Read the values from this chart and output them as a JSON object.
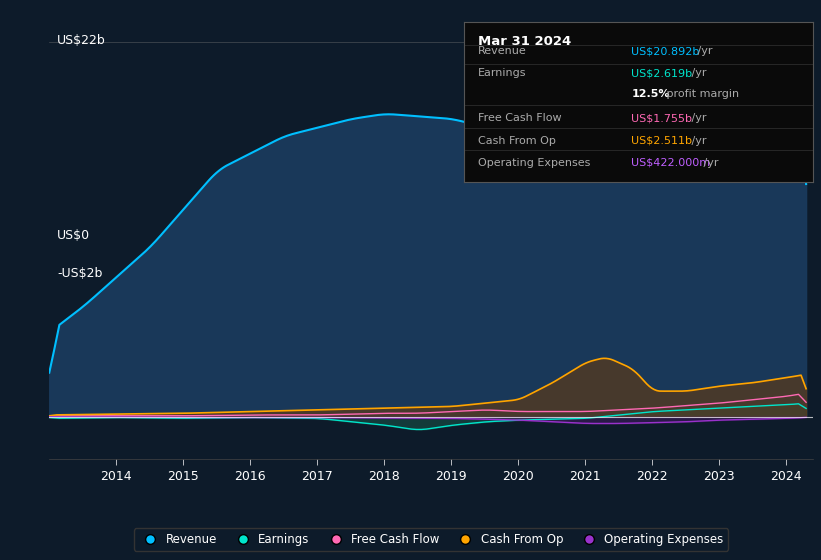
{
  "bg_color": "#0d1b2a",
  "plot_bg_color": "#0d1b2a",
  "title": "Mar 31 2024",
  "ylabel_top": "US$22b",
  "ylabel_zero": "US$0",
  "ylabel_neg": "-US$2b",
  "x_ticks": [
    "2014",
    "2015",
    "2016",
    "2017",
    "2018",
    "2019",
    "2020",
    "2021",
    "2022",
    "2023",
    "2024"
  ],
  "colors": {
    "revenue": "#00bfff",
    "earnings": "#00e5cc",
    "free_cash_flow": "#ff69b4",
    "cash_from_op": "#ffa500",
    "operating_expenses": "#9932cc"
  },
  "legend": [
    {
      "label": "Revenue",
      "color": "#00bfff"
    },
    {
      "label": "Earnings",
      "color": "#00e5cc"
    },
    {
      "label": "Free Cash Flow",
      "color": "#ff69b4"
    },
    {
      "label": "Cash From Op",
      "color": "#ffa500"
    },
    {
      "label": "Operating Expenses",
      "color": "#9932cc"
    }
  ]
}
